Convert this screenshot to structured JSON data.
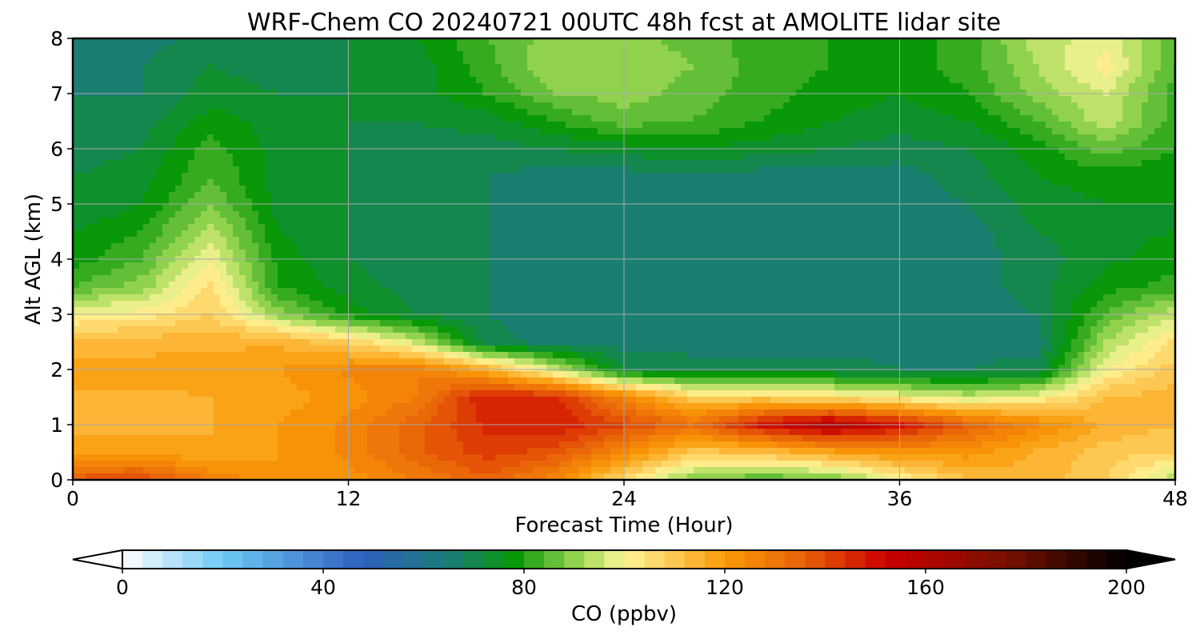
{
  "chart_data": {
    "type": "heatmap",
    "title": "WRF-Chem CO  20240721 00UTC 48h fcst at AMOLITE lidar site",
    "xlabel": "Forecast Time (Hour)",
    "ylabel": "Alt AGL (km)",
    "xlim": [
      0,
      48
    ],
    "ylim": [
      0,
      8
    ],
    "xticks": [
      "0",
      "12",
      "24",
      "36",
      "48"
    ],
    "yticks": [
      "0",
      "1",
      "2",
      "3",
      "4",
      "5",
      "6",
      "7",
      "8"
    ],
    "grid": true,
    "x_hours": [
      0,
      3,
      6,
      9,
      12,
      15,
      18,
      21,
      24,
      27,
      30,
      33,
      36,
      39,
      42,
      45,
      48
    ],
    "y_km": [
      0,
      0.5,
      1,
      1.5,
      2,
      2.5,
      3,
      3.5,
      4,
      4.5,
      5,
      5.5,
      6,
      6.5,
      7,
      7.5,
      8
    ],
    "z_ppbv": [
      [
        138,
        140,
        128,
        120,
        122,
        128,
        135,
        125,
        105,
        88,
        84,
        86,
        100,
        112,
        115,
        108,
        92
      ],
      [
        118,
        118,
        116,
        120,
        125,
        135,
        142,
        138,
        125,
        110,
        112,
        118,
        122,
        122,
        115,
        110,
        108
      ],
      [
        115,
        115,
        116,
        120,
        125,
        135,
        145,
        148,
        140,
        132,
        150,
        160,
        150,
        135,
        125,
        115,
        112
      ],
      [
        115,
        115,
        116,
        118,
        122,
        128,
        148,
        145,
        126,
        108,
        108,
        105,
        100,
        95,
        100,
        112,
        114
      ],
      [
        118,
        118,
        118,
        120,
        125,
        128,
        115,
        95,
        72,
        70,
        70,
        70,
        68,
        68,
        70,
        100,
        110
      ],
      [
        112,
        114,
        115,
        115,
        108,
        95,
        70,
        66,
        66,
        66,
        66,
        66,
        66,
        66,
        66,
        92,
        105
      ],
      [
        100,
        102,
        108,
        90,
        78,
        72,
        68,
        66,
        66,
        66,
        66,
        66,
        66,
        66,
        68,
        85,
        95
      ],
      [
        84,
        90,
        105,
        80,
        74,
        70,
        68,
        66,
        66,
        66,
        66,
        66,
        66,
        66,
        70,
        78,
        82
      ],
      [
        78,
        84,
        100,
        78,
        72,
        70,
        68,
        66,
        66,
        66,
        66,
        66,
        66,
        66,
        70,
        75,
        78
      ],
      [
        76,
        80,
        94,
        76,
        72,
        70,
        68,
        66,
        66,
        66,
        66,
        66,
        66,
        66,
        72,
        75,
        76
      ],
      [
        72,
        76,
        88,
        74,
        72,
        70,
        68,
        66,
        66,
        66,
        66,
        66,
        66,
        68,
        74,
        76,
        76
      ],
      [
        72,
        74,
        84,
        74,
        72,
        70,
        68,
        66,
        66,
        66,
        66,
        66,
        66,
        70,
        76,
        78,
        76
      ],
      [
        70,
        72,
        82,
        74,
        72,
        70,
        70,
        72,
        74,
        76,
        74,
        72,
        70,
        72,
        78,
        86,
        80
      ],
      [
        70,
        70,
        78,
        74,
        72,
        72,
        74,
        80,
        86,
        84,
        80,
        76,
        74,
        76,
        84,
        95,
        82
      ],
      [
        68,
        68,
        74,
        72,
        72,
        74,
        80,
        88,
        90,
        86,
        82,
        78,
        76,
        80,
        90,
        96,
        82
      ],
      [
        66,
        68,
        72,
        70,
        72,
        74,
        82,
        92,
        92,
        88,
        82,
        80,
        78,
        82,
        92,
        102,
        84
      ],
      [
        66,
        66,
        70,
        70,
        72,
        76,
        84,
        90,
        90,
        86,
        82,
        80,
        78,
        82,
        94,
        98,
        86
      ]
    ],
    "colorbar": {
      "label": "CO  (ppbv)",
      "min": 0,
      "max": 200,
      "step": 4,
      "ticks": [
        "0",
        "40",
        "80",
        "120",
        "160",
        "200"
      ],
      "extend": "both",
      "stops": [
        {
          "v": 0,
          "c": "#ffffff"
        },
        {
          "v": 20,
          "c": "#6ec8f5"
        },
        {
          "v": 48,
          "c": "#2e5fc0"
        },
        {
          "v": 66,
          "c": "#1a7f70"
        },
        {
          "v": 78,
          "c": "#08980a"
        },
        {
          "v": 92,
          "c": "#a8dc58"
        },
        {
          "v": 100,
          "c": "#fff59a"
        },
        {
          "v": 120,
          "c": "#fa9a08"
        },
        {
          "v": 136,
          "c": "#e86008"
        },
        {
          "v": 152,
          "c": "#cc0000"
        },
        {
          "v": 176,
          "c": "#781000"
        },
        {
          "v": 200,
          "c": "#000000"
        }
      ]
    }
  }
}
